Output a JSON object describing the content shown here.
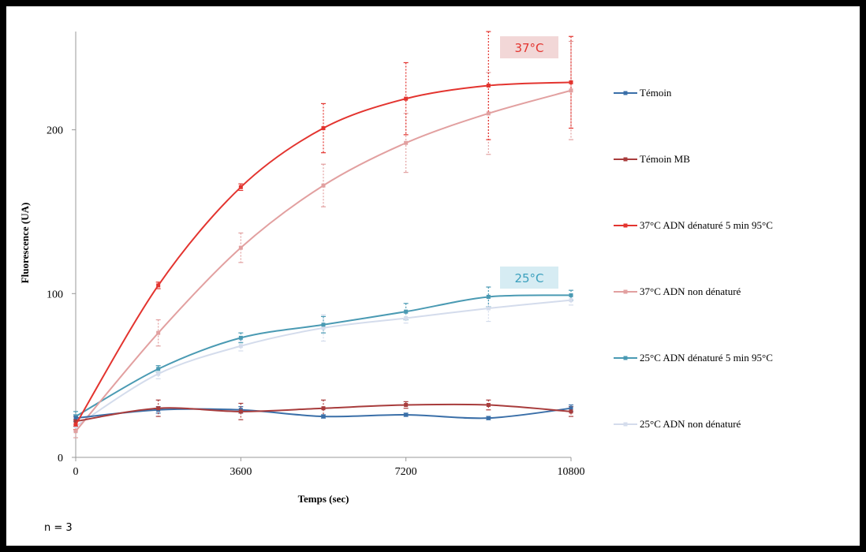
{
  "chart_data": {
    "type": "line",
    "xlabel": "Temps (sec)",
    "ylabel": "Fluorescence (UA)",
    "x": [
      0,
      1800,
      3600,
      5400,
      7200,
      9000,
      10800
    ],
    "xticks": [
      0,
      3600,
      7200,
      10800
    ],
    "yticks": [
      0,
      100,
      200
    ],
    "xlim": [
      0,
      10800
    ],
    "ylim": [
      0,
      260
    ],
    "grid": false,
    "legend_position": "right",
    "series": [
      {
        "name": "Témoin",
        "color": "#3a6fa8",
        "values": [
          24,
          29,
          29,
          25,
          26,
          24,
          30
        ],
        "errors": [
          2,
          2,
          2,
          1,
          1,
          1,
          2
        ]
      },
      {
        "name": "Témoin MB",
        "color": "#a83c3c",
        "values": [
          22,
          30,
          28,
          30,
          32,
          32,
          28
        ],
        "errors": [
          3,
          5,
          5,
          5,
          2,
          3,
          3
        ]
      },
      {
        "name": "37°C ADN dénaturé 5 min 95°C",
        "color": "#e3342f",
        "values": [
          20,
          105,
          165,
          201,
          219,
          227,
          229
        ],
        "errors": [
          3,
          2,
          2,
          15,
          22,
          33,
          28
        ]
      },
      {
        "name": "37°C ADN non dénaturé",
        "color": "#e2a0a0",
        "values": [
          16,
          76,
          128,
          166,
          192,
          210,
          224
        ],
        "errors": [
          4,
          8,
          9,
          13,
          18,
          25,
          30
        ]
      },
      {
        "name": "25°C ADN dénaturé 5 min 95°C",
        "color": "#4a9ab3",
        "values": [
          25,
          54,
          73,
          81,
          89,
          98,
          99
        ],
        "errors": [
          3,
          2,
          3,
          5,
          5,
          6,
          3
        ]
      },
      {
        "name": "25°C ADN non dénaturé",
        "color": "#d4dcec",
        "values": [
          19,
          51,
          68,
          79,
          85,
          91,
          96
        ],
        "errors": [
          3,
          3,
          3,
          8,
          3,
          8,
          3
        ]
      }
    ],
    "annotations": [
      {
        "text": "37°C",
        "color": "#e3342f",
        "background": "#f2d7d7"
      },
      {
        "text": "25°C",
        "color": "#3ba0bd",
        "background": "#d6ecf3"
      }
    ],
    "footnote": "n = 3"
  }
}
